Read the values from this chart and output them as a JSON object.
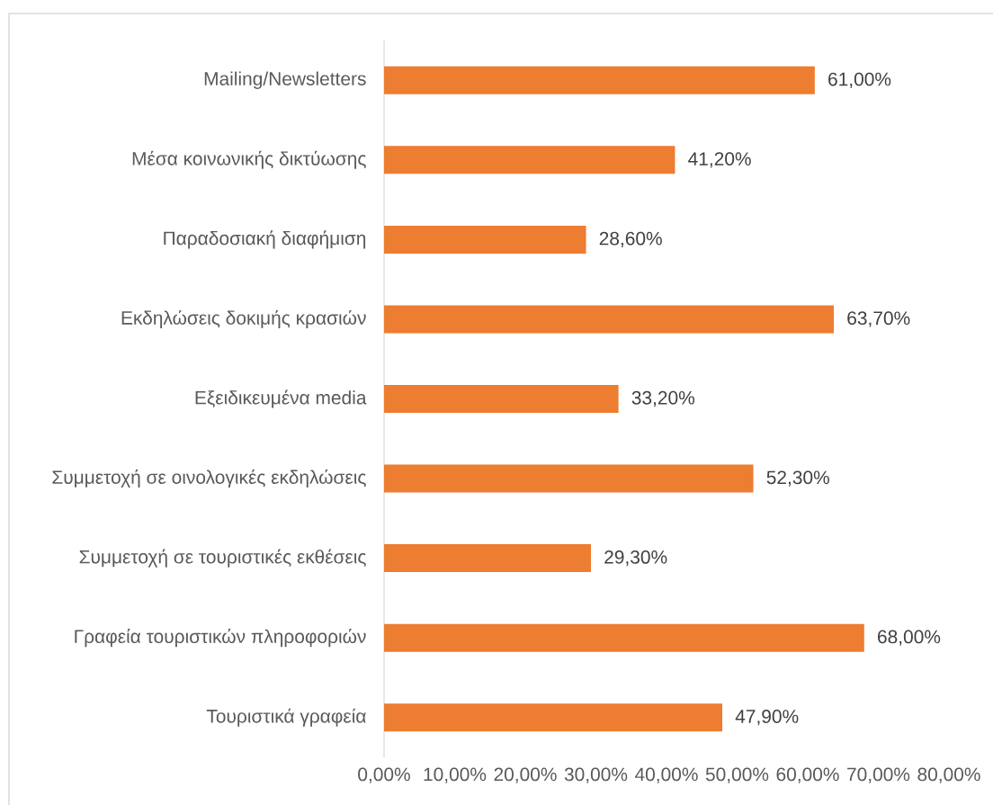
{
  "chart_data": {
    "type": "bar",
    "orientation": "horizontal",
    "categories": [
      "Mailing/Newsletters",
      "Μέσα κοινωνικής δικτύωσης",
      "Παραδοσιακή διαφήμιση",
      "Εκδηλώσεις δοκιμής κρασιών",
      "Εξειδικευμένα media",
      "Συμμετοχή σε οινολογικές εκδηλώσεις",
      "Συμμετοχή σε τουριστικές εκθέσεις",
      "Γραφεία τουριστικών πληροφοριών",
      "Τουριστικά γραφεία"
    ],
    "values": [
      61.0,
      41.2,
      28.6,
      63.7,
      33.2,
      52.3,
      29.3,
      68.0,
      47.9
    ],
    "value_labels": [
      "61,00%",
      "41,20%",
      "28,60%",
      "63,70%",
      "33,20%",
      "52,30%",
      "29,30%",
      "68,00%",
      "47,90%"
    ],
    "color": "#ed7d31",
    "xlim": [
      0,
      80
    ],
    "xticks": [
      {
        "value": 0,
        "label": "0,00%"
      },
      {
        "value": 10,
        "label": "10,00%"
      },
      {
        "value": 20,
        "label": "20,00%"
      },
      {
        "value": 30,
        "label": "30,00%"
      },
      {
        "value": 40,
        "label": "40,00%"
      },
      {
        "value": 50,
        "label": "50,00%"
      },
      {
        "value": 60,
        "label": "60,00%"
      },
      {
        "value": 70,
        "label": "70,00%"
      },
      {
        "value": 80,
        "label": "80,00%"
      }
    ]
  }
}
